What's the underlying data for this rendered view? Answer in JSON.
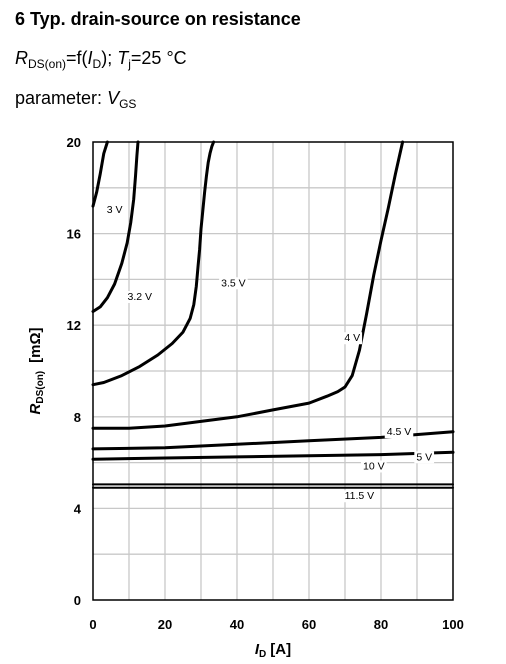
{
  "header": {
    "title": "6 Typ. drain-source on resistance",
    "line2_sym": "R",
    "line2_sub": "DS(on)",
    "line2_mid": "=f(",
    "line2_var": "I",
    "line2_var_sub": "D",
    "line2_close": ");",
    "line2_t": "T",
    "line2_t_sub": "j",
    "line2_tail": "=25 °C",
    "line3_label": "parameter:",
    "line3_var": "V",
    "line3_sub": "GS"
  },
  "chart_data": {
    "type": "line",
    "title": "",
    "xlabel_var": "I",
    "xlabel_sub": "D",
    "xlabel_unit": "[A]",
    "ylabel_var": "R",
    "ylabel_sub": "DS(on)",
    "ylabel_unit": "[mΩ]",
    "xlim": [
      0,
      100
    ],
    "ylim": [
      0,
      20
    ],
    "xticks": [
      0,
      20,
      40,
      60,
      80,
      100
    ],
    "yticks": [
      0,
      4,
      8,
      12,
      16,
      20
    ],
    "grid": true,
    "series": [
      {
        "name": "3 V",
        "label_at": [
          6,
          16.9
        ],
        "width": 3,
        "x": [
          0,
          1,
          2,
          3,
          4
        ],
        "y": [
          17.2,
          17.8,
          18.6,
          19.5,
          20
        ]
      },
      {
        "name": "3.2 V",
        "label_at": [
          13,
          13.1
        ],
        "width": 3,
        "x": [
          0,
          2,
          4,
          6,
          8,
          9.5,
          10.5,
          11.3,
          11.8,
          12.2,
          12.5
        ],
        "y": [
          12.6,
          12.8,
          13.2,
          13.8,
          14.7,
          15.6,
          16.5,
          17.5,
          18.5,
          19.4,
          20
        ]
      },
      {
        "name": "3.5 V",
        "label_at": [
          39,
          13.7
        ],
        "width": 3,
        "x": [
          0,
          3,
          8,
          13,
          18,
          22,
          25,
          27,
          28,
          28.7,
          29.2,
          29.6,
          30,
          30.5,
          31,
          31.5,
          32,
          32.5,
          33,
          33.5
        ],
        "y": [
          9.4,
          9.5,
          9.8,
          10.2,
          10.7,
          11.2,
          11.7,
          12.3,
          12.9,
          13.7,
          14.6,
          15.3,
          16.2,
          17.0,
          17.8,
          18.5,
          19.1,
          19.5,
          19.8,
          20
        ]
      },
      {
        "name": "4 V",
        "label_at": [
          72,
          11.3
        ],
        "width": 3,
        "x": [
          0,
          10,
          20,
          30,
          40,
          50,
          60,
          65,
          68,
          70,
          72,
          74,
          76,
          78,
          80,
          82,
          84,
          85,
          86
        ],
        "y": [
          7.5,
          7.5,
          7.6,
          7.8,
          8.0,
          8.3,
          8.6,
          8.9,
          9.1,
          9.3,
          9.8,
          10.9,
          12.5,
          14.2,
          15.7,
          17.1,
          18.6,
          19.3,
          20
        ]
      },
      {
        "name": "4.5 V",
        "label_at": [
          85,
          7.2
        ],
        "width": 3,
        "x": [
          0,
          20,
          40,
          60,
          80,
          100
        ],
        "y": [
          6.6,
          6.65,
          6.8,
          6.95,
          7.1,
          7.35
        ]
      },
      {
        "name": "5 V",
        "label_at": [
          92,
          6.1
        ],
        "width": 3,
        "x": [
          0,
          20,
          40,
          60,
          80,
          100
        ],
        "y": [
          6.15,
          6.2,
          6.25,
          6.3,
          6.35,
          6.45
        ]
      },
      {
        "name": "10 V",
        "label_at": [
          78,
          5.7
        ],
        "width": 2,
        "x": [
          0,
          100
        ],
        "y": [
          5.05,
          5.05
        ]
      },
      {
        "name": "11.5 V",
        "label_at": [
          74,
          4.4
        ],
        "width": 2,
        "x": [
          0,
          100
        ],
        "y": [
          4.9,
          4.9
        ]
      }
    ]
  }
}
